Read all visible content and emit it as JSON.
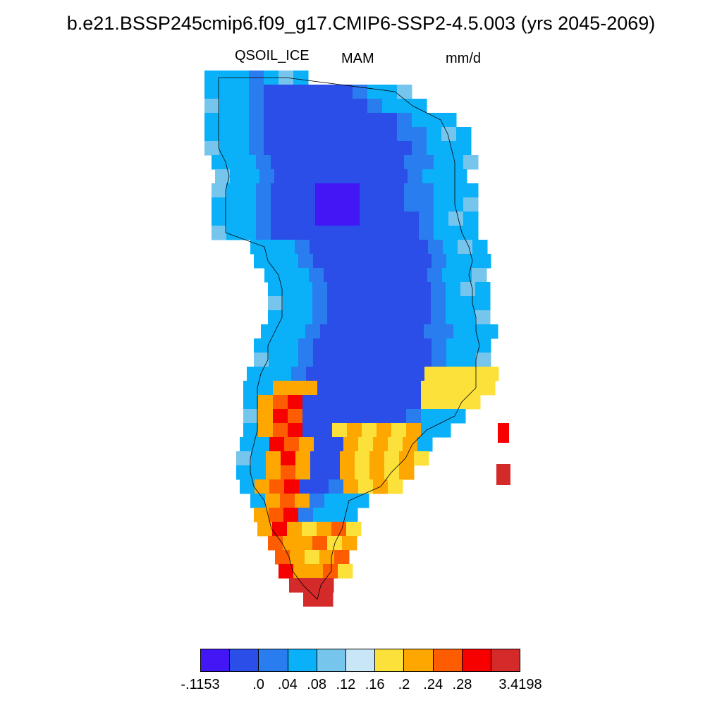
{
  "title": "b.e21.BSSP245cmip6.f09_g17.CMIP6-SSP2-4.5.003 (yrs 2045-2069)",
  "variable": "QSOIL_ICE",
  "season": "MAM",
  "units": "mm/d",
  "colorbar": {
    "colors": [
      "#4216f5",
      "#2b4de8",
      "#2a7def",
      "#0ab0f8",
      "#76c5ec",
      "#c9e6f6",
      "#fde13b",
      "#fda700",
      "#fd5d00",
      "#f60000",
      "#d42a2a"
    ],
    "labels": [
      "-.1153",
      ".0",
      ".04",
      ".08",
      ".12",
      ".16",
      ".2",
      ".24",
      ".28",
      "3.4198"
    ]
  },
  "chart_data": {
    "type": "heatmap",
    "title": "b.e21.BSSP245cmip6.f09_g17.CMIP6-SSP2-4.5.003 (yrs 2045-2069)",
    "variable": "QSOIL_ICE",
    "season": "MAM",
    "units": "mm/d",
    "region": "Greenland",
    "levels": [
      -0.1153,
      0.0,
      0.04,
      0.08,
      0.12,
      0.16,
      0.2,
      0.24,
      0.28,
      3.4198
    ],
    "pattern": [
      "interior ice sheet: -0.1153 to 0.04 (minimum in central-north)",
      "coastal margins: 0.04 to 0.16",
      "southwest and southern tip: 0.2 to 3.4198 (maximum near southern tip and east coast islands)"
    ]
  }
}
